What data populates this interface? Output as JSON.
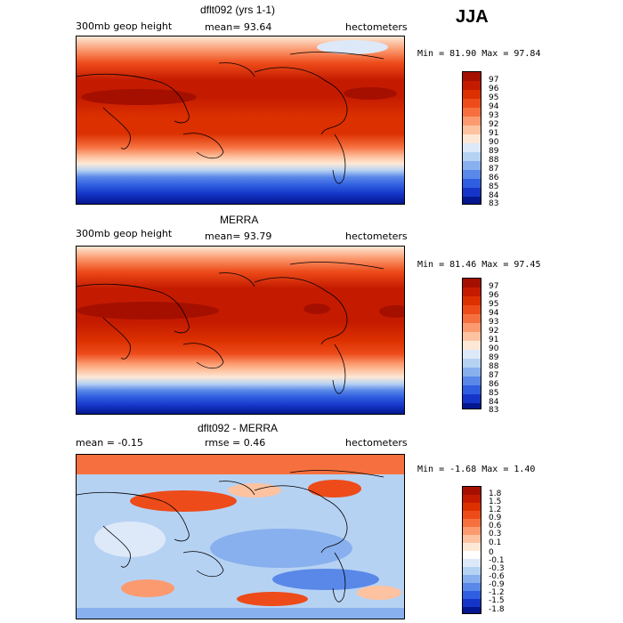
{
  "season": "JJA",
  "panels": [
    {
      "title": "dflt092 (yrs 1-1)",
      "left_label": "300mb geop height",
      "center_label": "mean=  93.64",
      "right_label": "hectometers",
      "minmax": "Min =  81.90 Max =  97.84",
      "levels": [
        "97",
        "96",
        "95",
        "94",
        "93",
        "92",
        "91",
        "90",
        "89",
        "88",
        "87",
        "86",
        "85",
        "84",
        "83"
      ],
      "colors": [
        "#a50f00",
        "#c41b00",
        "#dc3000",
        "#ed4b1a",
        "#f6703f",
        "#fb9a6f",
        "#fdc2a0",
        "#fde8d6",
        "#dde9f8",
        "#b6d2f3",
        "#88b0ee",
        "#5a88e8",
        "#2f5ee0",
        "#1535c8",
        "#04178e"
      ]
    },
    {
      "title": "MERRA",
      "left_label": "300mb geop height",
      "center_label": "mean=  93.79",
      "right_label": "hectometers",
      "minmax": "Min =  81.46 Max =  97.45",
      "levels": [
        "97",
        "96",
        "95",
        "94",
        "93",
        "92",
        "91",
        "90",
        "89",
        "88",
        "87",
        "86",
        "85",
        "84",
        "83"
      ],
      "colors": [
        "#a50f00",
        "#c41b00",
        "#dc3000",
        "#ed4b1a",
        "#f6703f",
        "#fb9a6f",
        "#fdc2a0",
        "#fde8d6",
        "#dde9f8",
        "#b6d2f3",
        "#88b0ee",
        "#5a88e8",
        "#2f5ee0",
        "#1535c8",
        "#04178e"
      ]
    },
    {
      "title": "dflt092 - MERRA",
      "left_label": "mean =  -0.15",
      "center_label": "rmse =   0.46",
      "right_label": "hectometers",
      "minmax": "Min =  -1.68 Max =   1.40",
      "levels": [
        "1.8",
        "1.5",
        "1.2",
        "0.9",
        "0.6",
        "0.3",
        "0.1",
        "0",
        "-0.1",
        "-0.3",
        "-0.6",
        "-0.9",
        "-1.2",
        "-1.5",
        "-1.8"
      ],
      "colors": [
        "#a50f00",
        "#c41b00",
        "#dc3000",
        "#ed4b1a",
        "#f6703f",
        "#fb9a6f",
        "#fdc2a0",
        "#fde8d6",
        "#ffffff",
        "#dde9f8",
        "#b6d2f3",
        "#88b0ee",
        "#5a88e8",
        "#2f5ee0",
        "#1535c8",
        "#04178e"
      ]
    }
  ],
  "chart_data": [
    {
      "type": "heatmap",
      "title": "dflt092 (yrs 1-1)",
      "variable": "300mb geop height",
      "units": "hectometers",
      "mean": 93.64,
      "min": 81.9,
      "max": 97.84,
      "colorbar_levels": [
        97,
        96,
        95,
        94,
        93,
        92,
        91,
        90,
        89,
        88,
        87,
        86,
        85,
        84,
        83
      ]
    },
    {
      "type": "heatmap",
      "title": "MERRA",
      "variable": "300mb geop height",
      "units": "hectometers",
      "mean": 93.79,
      "min": 81.46,
      "max": 97.45,
      "colorbar_levels": [
        97,
        96,
        95,
        94,
        93,
        92,
        91,
        90,
        89,
        88,
        87,
        86,
        85,
        84,
        83
      ]
    },
    {
      "type": "heatmap",
      "title": "dflt092 - MERRA",
      "units": "hectometers",
      "mean": -0.15,
      "rmse": 0.46,
      "min": -1.68,
      "max": 1.4,
      "colorbar_levels": [
        1.8,
        1.5,
        1.2,
        0.9,
        0.6,
        0.3,
        0.1,
        0,
        -0.1,
        -0.3,
        -0.6,
        -0.9,
        -1.2,
        -1.5,
        -1.8
      ]
    }
  ]
}
